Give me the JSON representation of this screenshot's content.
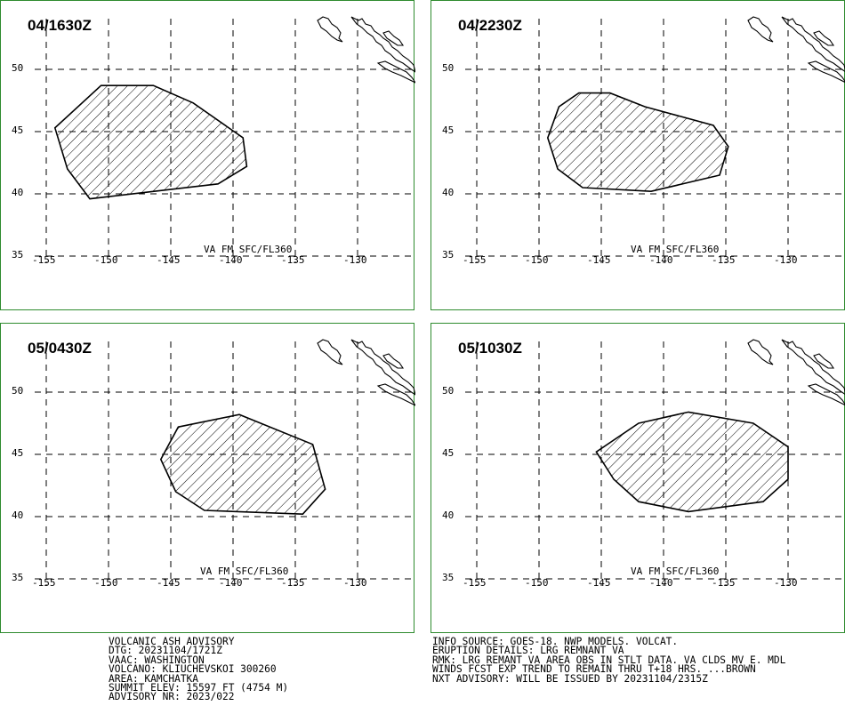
{
  "panels": [
    {
      "time": "04/1630Z",
      "level": "VA FM SFC/FL360",
      "polygon": [
        [
          -150.6,
          48.7
        ],
        [
          -146.4,
          48.7
        ],
        [
          -143.2,
          47.3
        ],
        [
          -139.2,
          44.5
        ],
        [
          -138.9,
          42.2
        ],
        [
          -141.2,
          40.8
        ],
        [
          -151.5,
          39.6
        ],
        [
          -153.3,
          42.0
        ],
        [
          -154.3,
          45.3
        ]
      ]
    },
    {
      "time": "04/2230Z",
      "level": "VA FM SFC/FL360",
      "polygon": [
        [
          -146.8,
          48.1
        ],
        [
          -144.3,
          48.1
        ],
        [
          -141.5,
          47.0
        ],
        [
          -136.0,
          45.5
        ],
        [
          -134.8,
          43.8
        ],
        [
          -135.5,
          41.5
        ],
        [
          -141.0,
          40.2
        ],
        [
          -146.5,
          40.5
        ],
        [
          -148.5,
          42.0
        ],
        [
          -149.3,
          44.5
        ],
        [
          -148.4,
          47.0
        ]
      ]
    },
    {
      "time": "05/0430Z",
      "level": "VA FM SFC/FL360",
      "polygon": [
        [
          -144.4,
          47.2
        ],
        [
          -139.5,
          48.2
        ],
        [
          -133.6,
          45.8
        ],
        [
          -132.6,
          42.2
        ],
        [
          -134.4,
          40.2
        ],
        [
          -142.3,
          40.5
        ],
        [
          -144.6,
          42.0
        ],
        [
          -145.8,
          44.6
        ]
      ]
    },
    {
      "time": "05/1030Z",
      "level": "VA FM SFC/FL360",
      "polygon": [
        [
          -142.0,
          47.5
        ],
        [
          -138.0,
          48.4
        ],
        [
          -132.8,
          47.5
        ],
        [
          -130.0,
          45.6
        ],
        [
          -130.0,
          43.0
        ],
        [
          -132.0,
          41.2
        ],
        [
          -138.0,
          40.4
        ],
        [
          -142.0,
          41.2
        ],
        [
          -144.0,
          43.0
        ],
        [
          -145.4,
          45.2
        ]
      ]
    }
  ],
  "lat_labels": [
    50,
    45,
    40,
    35
  ],
  "lon_labels": [
    -155,
    -150,
    -145,
    -140,
    -135,
    -130
  ],
  "advisory_left": [
    "VOLCANIC ASH ADVISORY",
    "DTG: 20231104/1721Z",
    "VAAC: WASHINGTON",
    "VOLCANO: KLIUCHEVSKOI 300260",
    "AREA: KAMCHATKA",
    "SUMMIT ELEV: 15597 FT (4754 M)",
    "ADVISORY NR: 2023/022"
  ],
  "advisory_right": [
    "INFO SOURCE: GOES-18. NWP MODELS. VOLCAT.",
    "ERUPTION DETAILS: LRG REMNANT VA",
    "RMK: LRG REMANT VA AREA OBS IN STLT DATA. VA CLDS MV E. MDL",
    "WINDS FCST EXP TREND TO REMAIN THRU T+18 HRS. ...BROWN",
    "NXT ADVISORY: WILL BE ISSUED BY 20231104/2315Z"
  ],
  "colors": {
    "panel_border": "#2e8b2e",
    "grid": "#000000",
    "ash": "#000000"
  }
}
